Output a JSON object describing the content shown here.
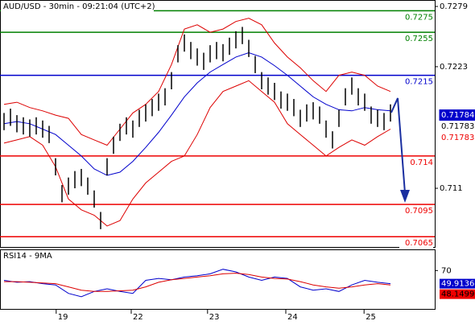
{
  "chart_data": {
    "type": "ohlc",
    "title": "AUD/USD - 30min - 09:21:04 (UTC+2)",
    "xlim": [
      -0.625,
      66.875
    ],
    "xticks": [
      {
        "value": 8.1,
        "label": "19"
      },
      {
        "value": 19.75,
        "label": "22"
      },
      {
        "value": 31.6,
        "label": "23"
      },
      {
        "value": 43.75,
        "label": "24"
      },
      {
        "value": 55.9,
        "label": "25"
      }
    ],
    "ylim": [
      0.70547,
      0.7285
    ],
    "yticks": [
      0.7279,
      0.7223,
      0.711
    ],
    "bars": {
      "color": "#000000",
      "high": [
        0.718,
        0.7184,
        0.7178,
        0.7176,
        0.7174,
        0.7176,
        0.7173,
        0.7168,
        0.7138,
        0.7113,
        0.712,
        0.7126,
        0.7128,
        0.712,
        0.7108,
        0.7088,
        0.7138,
        0.7158,
        0.717,
        0.7176,
        0.7173,
        0.7183,
        0.7188,
        0.7193,
        0.7198,
        0.7203,
        0.7218,
        0.7243,
        0.7253,
        0.7246,
        0.724,
        0.7236,
        0.7243,
        0.7246,
        0.7244,
        0.725,
        0.7256,
        0.726,
        0.7248,
        0.7233,
        0.7218,
        0.7213,
        0.7208,
        0.72,
        0.7198,
        0.7193,
        0.7183,
        0.7188,
        0.719,
        0.7186,
        0.7173,
        0.7163,
        0.7183,
        0.7203,
        0.7213,
        0.7203,
        0.7198,
        0.7186,
        0.7183,
        0.718,
        0.7188
      ],
      "low": [
        0.7164,
        0.7168,
        0.7162,
        0.716,
        0.7158,
        0.716,
        0.7157,
        0.7152,
        0.7122,
        0.7097,
        0.7104,
        0.711,
        0.7112,
        0.7104,
        0.7092,
        0.7072,
        0.7122,
        0.7142,
        0.7154,
        0.716,
        0.7157,
        0.7167,
        0.7172,
        0.7177,
        0.7182,
        0.7187,
        0.7202,
        0.7227,
        0.7237,
        0.723,
        0.7224,
        0.722,
        0.7227,
        0.723,
        0.7228,
        0.7234,
        0.724,
        0.7244,
        0.7232,
        0.7217,
        0.7202,
        0.7197,
        0.7192,
        0.7184,
        0.7182,
        0.7177,
        0.7167,
        0.7172,
        0.7174,
        0.717,
        0.7157,
        0.7147,
        0.7167,
        0.7187,
        0.7197,
        0.7187,
        0.7182,
        0.717,
        0.7167,
        0.7164,
        0.7172
      ]
    },
    "overlays": [
      {
        "color": "#0000cc",
        "x": [
          0,
          2,
          4,
          6,
          8,
          10,
          12,
          14,
          16,
          18,
          20,
          22,
          24,
          26,
          28,
          30,
          32,
          34,
          36,
          38,
          40,
          42,
          44,
          46,
          48,
          50,
          52,
          54,
          56,
          58,
          60
        ],
        "values": [
          0.717,
          0.7172,
          0.717,
          0.7165,
          0.716,
          0.715,
          0.714,
          0.7128,
          0.7122,
          0.7125,
          0.7135,
          0.7148,
          0.7162,
          0.7178,
          0.7195,
          0.7208,
          0.7218,
          0.7225,
          0.7232,
          0.7236,
          0.7232,
          0.7224,
          0.7215,
          0.7205,
          0.7195,
          0.7188,
          0.7183,
          0.7182,
          0.7185,
          0.7183,
          0.7182
        ]
      },
      {
        "color": "#dd0000",
        "x": [
          0,
          2,
          4,
          6,
          8,
          10,
          12,
          14,
          16,
          18,
          20,
          22,
          24,
          26,
          28,
          30,
          32,
          34,
          36,
          38,
          40,
          42,
          44,
          46,
          48,
          50,
          52,
          54,
          56,
          58,
          60
        ],
        "values": [
          0.7188,
          0.719,
          0.7185,
          0.7182,
          0.7178,
          0.7175,
          0.716,
          0.7155,
          0.715,
          0.7165,
          0.718,
          0.7188,
          0.72,
          0.7225,
          0.7258,
          0.7262,
          0.7255,
          0.7258,
          0.7265,
          0.7268,
          0.7262,
          0.7245,
          0.7232,
          0.7222,
          0.721,
          0.72,
          0.7215,
          0.7218,
          0.7215,
          0.7205,
          0.72
        ]
      },
      {
        "color": "#dd0000",
        "x": [
          0,
          2,
          4,
          6,
          8,
          10,
          12,
          14,
          16,
          18,
          20,
          22,
          24,
          26,
          28,
          30,
          32,
          34,
          36,
          38,
          40,
          42,
          44,
          46,
          48,
          50,
          52,
          54,
          56,
          58,
          60
        ],
        "values": [
          0.7152,
          0.7155,
          0.7158,
          0.715,
          0.713,
          0.71,
          0.709,
          0.7085,
          0.7075,
          0.708,
          0.71,
          0.7115,
          0.7125,
          0.7135,
          0.714,
          0.716,
          0.7185,
          0.72,
          0.7205,
          0.721,
          0.72,
          0.719,
          0.717,
          0.716,
          0.715,
          0.714,
          0.7148,
          0.7155,
          0.715,
          0.7158,
          0.7165
        ]
      }
    ],
    "levels": [
      {
        "value": 0.7275,
        "color": "#008000"
      },
      {
        "value": 0.7255,
        "color": "#008000"
      },
      {
        "value": 0.7215,
        "color": "#0000cc"
      },
      {
        "value": 0.714,
        "color": "#ee0000"
      },
      {
        "value": 0.7095,
        "color": "#ee0000"
      },
      {
        "value": 0.7065,
        "color": "#ee0000"
      }
    ],
    "price_labels": [
      {
        "value": 0.71784,
        "color": "#ffffff",
        "background": "#0000cc"
      },
      {
        "value": 0.71783,
        "color": "#000000",
        "background": "#ffffff"
      },
      {
        "value": 0.71783,
        "color": "#ee0000",
        "background": "#ffffff"
      }
    ],
    "rsi": {
      "title": "RSI14 - 9MA",
      "ylim": [
        10,
        100
      ],
      "yticks": [
        70
      ],
      "x": [
        0,
        2,
        4,
        6,
        8,
        10,
        12,
        14,
        16,
        18,
        20,
        22,
        24,
        26,
        28,
        30,
        32,
        34,
        36,
        38,
        40,
        42,
        44,
        46,
        48,
        50,
        52,
        54,
        56,
        58,
        60
      ],
      "series": [
        {
          "color": "#0000cc",
          "values": [
            55,
            52,
            53,
            50,
            48,
            35,
            30,
            38,
            42,
            38,
            35,
            55,
            58,
            56,
            60,
            62,
            65,
            72,
            68,
            60,
            55,
            60,
            58,
            45,
            40,
            42,
            38,
            48,
            55,
            52,
            50
          ]
        },
        {
          "color": "#dd0000",
          "values": [
            53,
            53,
            52,
            51,
            50,
            45,
            40,
            38,
            38,
            39,
            40,
            45,
            52,
            56,
            58,
            60,
            62,
            65,
            66,
            64,
            60,
            58,
            57,
            53,
            48,
            45,
            43,
            45,
            48,
            50,
            48
          ]
        }
      ],
      "value_labels": [
        {
          "value": 49.9136,
          "color": "#ffffff",
          "background": "#0000cc"
        },
        {
          "value": 48.1499,
          "color": "#000000",
          "background": "#ee0000"
        }
      ]
    }
  }
}
